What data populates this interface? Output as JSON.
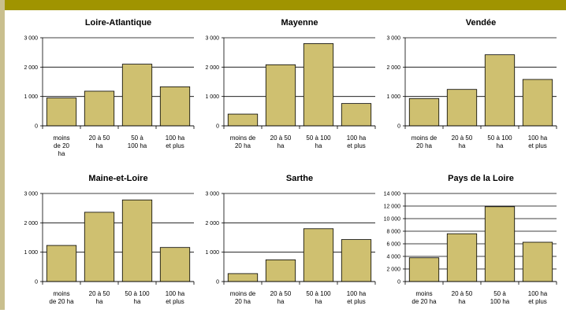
{
  "theme": {
    "bar_fill": "#cfc070",
    "bar_stroke": "#000000",
    "band_color": "#a09400",
    "side_band_color": "#c9bf8e"
  },
  "chart_data": [
    {
      "type": "bar",
      "title": "Loire-Atlantique",
      "categories": [
        "moins de 20 ha",
        "20 à 50 ha",
        "50 à 100 ha",
        "100 ha et plus"
      ],
      "category_lines": [
        [
          "moins",
          "de 20",
          "ha"
        ],
        [
          "20 à 50",
          "ha"
        ],
        [
          "50 à",
          "100 ha"
        ],
        [
          "100 ha",
          "et plus"
        ]
      ],
      "values": [
        950,
        1180,
        2100,
        1330
      ],
      "ylim": [
        0,
        3000
      ],
      "yticks": [
        0,
        1000,
        2000,
        3000
      ],
      "ytick_labels": [
        "0",
        "1 000",
        "2 000",
        "3 000"
      ],
      "grid": true
    },
    {
      "type": "bar",
      "title": "Mayenne",
      "categories": [
        "moins de 20 ha",
        "20 à 50 ha",
        "50 à 100 ha",
        "100 ha et plus"
      ],
      "category_lines": [
        [
          "moins de",
          "20 ha"
        ],
        [
          "20 à 50",
          "ha"
        ],
        [
          "50 à 100",
          "ha"
        ],
        [
          "100 ha",
          "et plus"
        ]
      ],
      "values": [
        400,
        2080,
        2800,
        760
      ],
      "ylim": [
        0,
        3000
      ],
      "yticks": [
        0,
        1000,
        2000,
        3000
      ],
      "ytick_labels": [
        "0",
        "1 000",
        "2 000",
        "3 000"
      ],
      "grid": true
    },
    {
      "type": "bar",
      "title": "Vendée",
      "categories": [
        "moins de 20 ha",
        "20 à 50 ha",
        "50 à 100 ha",
        "100 ha et plus"
      ],
      "category_lines": [
        [
          "moins de",
          "20 ha"
        ],
        [
          "20 à 50",
          "ha"
        ],
        [
          "50 à 100",
          "ha"
        ],
        [
          "100 ha",
          "et plus"
        ]
      ],
      "values": [
        930,
        1240,
        2420,
        1580
      ],
      "ylim": [
        0,
        3000
      ],
      "yticks": [
        0,
        1000,
        2000,
        3000
      ],
      "ytick_labels": [
        "0",
        "1 000",
        "2 000",
        "3 000"
      ],
      "grid": true
    },
    {
      "type": "bar",
      "title": "Maine-et-Loire",
      "categories": [
        "moins de 20 ha",
        "20 à 50 ha",
        "50 à 100 ha",
        "100 ha et plus"
      ],
      "category_lines": [
        [
          "moins",
          "de 20 ha"
        ],
        [
          "20 à 50",
          "ha"
        ],
        [
          "50 à 100",
          "ha"
        ],
        [
          "100 ha",
          "et plus"
        ]
      ],
      "values": [
        1230,
        2360,
        2780,
        1160
      ],
      "ylim": [
        0,
        3000
      ],
      "yticks": [
        0,
        1000,
        2000,
        3000
      ],
      "ytick_labels": [
        "0",
        "1 000",
        "2 000",
        "3 000"
      ],
      "grid": true
    },
    {
      "type": "bar",
      "title": "Sarthe",
      "categories": [
        "moins de 20 ha",
        "20 à 50 ha",
        "50 à 100 ha",
        "100 ha et plus"
      ],
      "category_lines": [
        [
          "moins de",
          "20 ha"
        ],
        [
          "20 à 50",
          "ha"
        ],
        [
          "50 à 100",
          "ha"
        ],
        [
          "100 ha",
          "et plus"
        ]
      ],
      "values": [
        270,
        740,
        1800,
        1430
      ],
      "ylim": [
        0,
        3000
      ],
      "yticks": [
        0,
        1000,
        2000,
        3000
      ],
      "ytick_labels": [
        "0",
        "1 000",
        "2 000",
        "3 000"
      ],
      "grid": true
    },
    {
      "type": "bar",
      "title": "Pays de la Loire",
      "categories": [
        "moins de 20 ha",
        "20 à 50 ha",
        "50 à 100 ha",
        "100 ha et plus"
      ],
      "category_lines": [
        [
          "moins",
          "de 20 ha"
        ],
        [
          "20 à 50",
          "ha"
        ],
        [
          "50 à",
          "100 ha"
        ],
        [
          "100 ha",
          "et plus"
        ]
      ],
      "values": [
        3780,
        7600,
        11900,
        6250
      ],
      "ylim": [
        0,
        14000
      ],
      "yticks": [
        0,
        2000,
        4000,
        6000,
        8000,
        10000,
        12000,
        14000
      ],
      "ytick_labels": [
        "0",
        "2 000",
        "4 000",
        "6 000",
        "8 000",
        "10 000",
        "12 000",
        "14 000"
      ],
      "grid": true
    }
  ]
}
